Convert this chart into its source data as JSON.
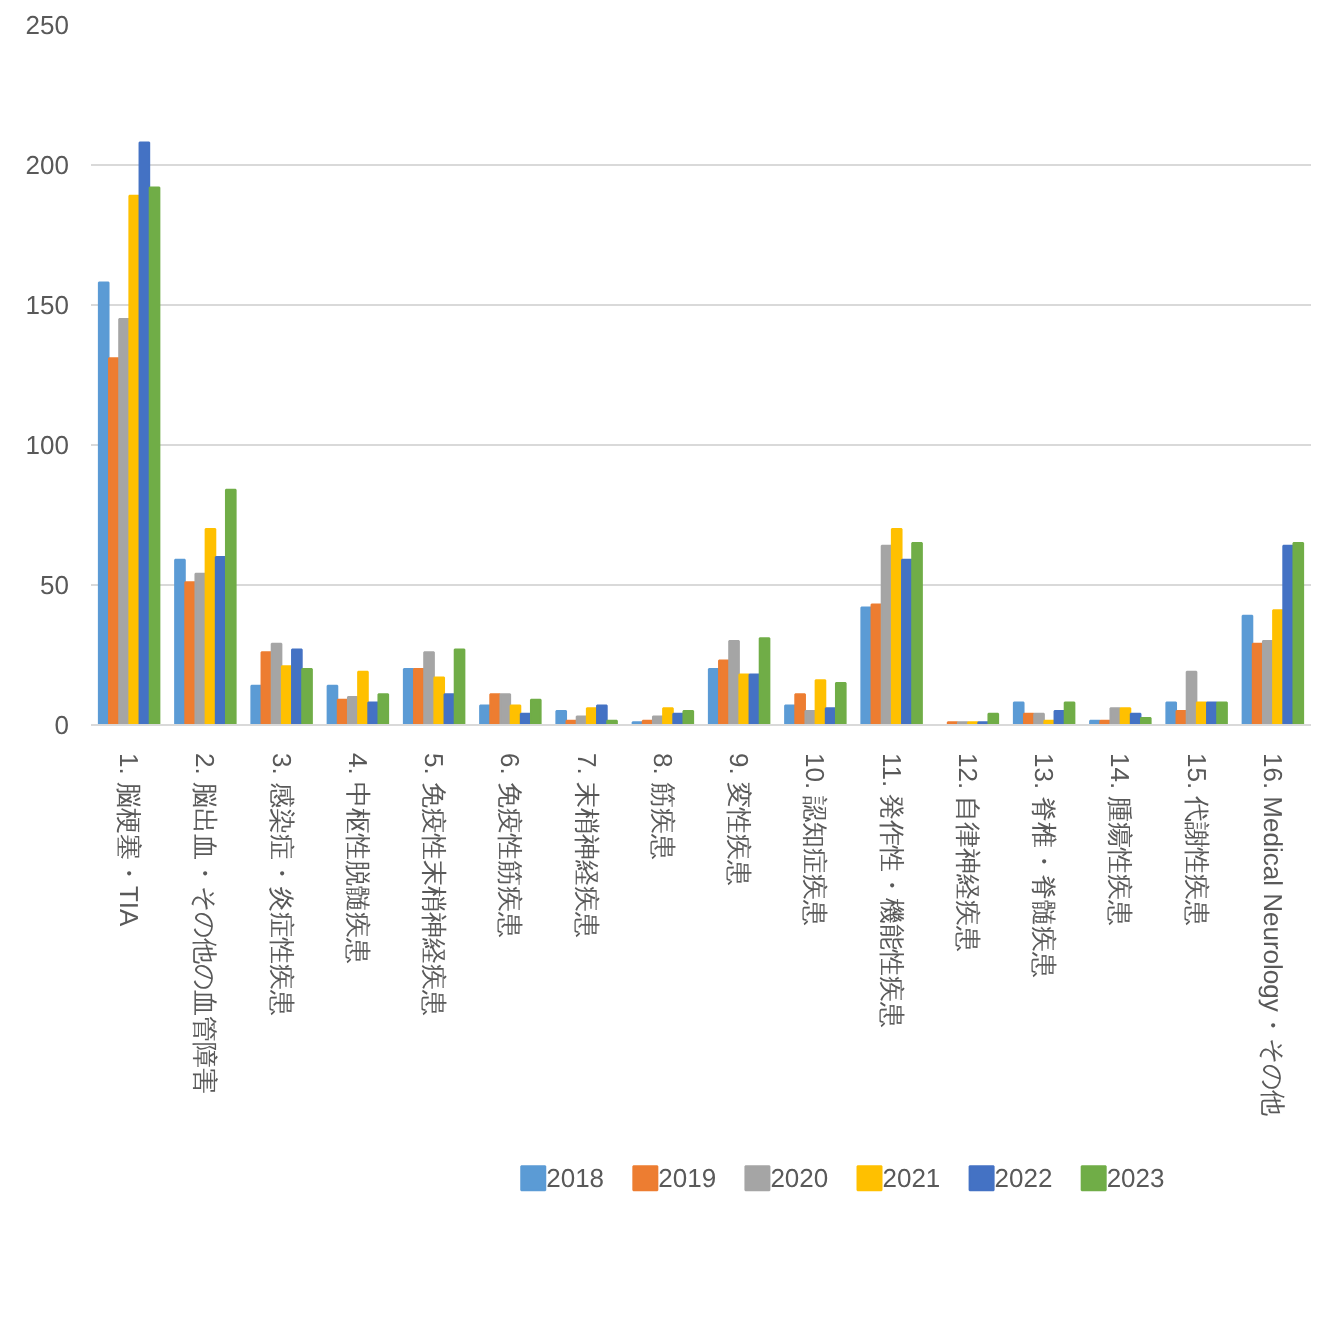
{
  "chart_data": {
    "type": "bar",
    "categories": [
      "1. 脳梗塞・TIA",
      "2. 脳出血・その他の血管障害",
      "3. 感染症・炎症性疾患",
      "4. 中枢性脱髄疾患",
      "5. 免疫性末梢神経疾患",
      "6. 免疫性筋疾患",
      "7. 末梢神経疾患",
      "8. 筋疾患",
      "9. 変性疾患",
      "10. 認知症疾患",
      "11. 発作性・機能性疾患",
      "12. 自律神経疾患",
      "13. 脊椎・脊髄疾患",
      "14. 腫瘍性疾患",
      "15. 代謝性疾患",
      "16. Medical Neurology・その他"
    ],
    "series": [
      {
        "name": "2018",
        "color": "#5b9bd5",
        "values": [
          158,
          59,
          14,
          14,
          20,
          7,
          5,
          1,
          20,
          7,
          42,
          0,
          8,
          1.5,
          8,
          39
        ]
      },
      {
        "name": "2019",
        "color": "#ed7d31",
        "values": [
          131,
          51,
          26,
          9,
          20,
          11,
          1.5,
          1.5,
          23,
          11,
          43,
          1,
          4,
          1.5,
          5,
          29
        ]
      },
      {
        "name": "2020",
        "color": "#a5a5a5",
        "values": [
          145,
          54,
          29,
          10,
          26,
          11,
          3,
          3,
          30,
          5,
          64,
          1,
          4,
          6,
          19,
          30
        ]
      },
      {
        "name": "2021",
        "color": "#ffc000",
        "values": [
          189,
          70,
          21,
          19,
          17,
          7,
          6,
          6,
          18,
          16,
          70,
          1,
          1.5,
          6,
          8,
          41
        ]
      },
      {
        "name": "2022",
        "color": "#4472c4",
        "values": [
          208,
          60,
          27,
          8,
          11,
          4,
          7,
          4,
          18,
          6,
          59,
          1,
          5,
          4,
          8,
          64
        ]
      },
      {
        "name": "2023",
        "color": "#70ad47",
        "values": [
          192,
          84,
          20,
          11,
          27,
          9,
          1.5,
          5,
          31,
          15,
          65,
          4,
          8,
          2.5,
          8,
          65
        ]
      }
    ],
    "ylim": [
      0,
      250
    ],
    "yticks": [
      0,
      50,
      100,
      150,
      200,
      250
    ],
    "grid": "y",
    "legend": "bottom"
  }
}
